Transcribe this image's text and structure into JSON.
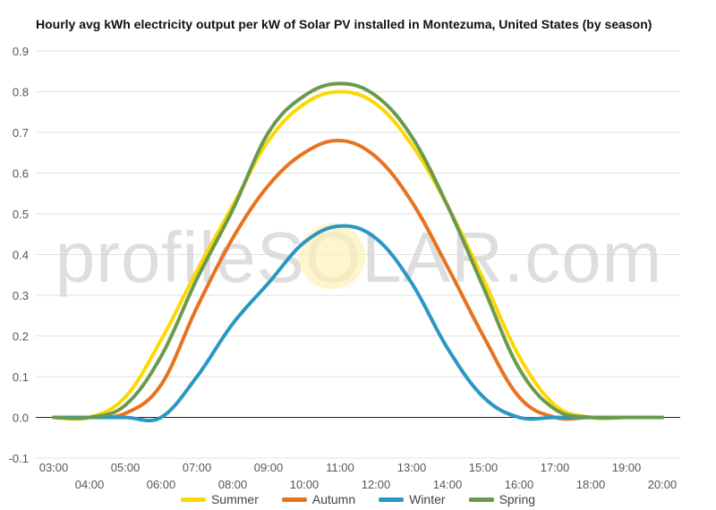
{
  "chart_data": {
    "type": "line",
    "title": "Hourly avg kWh electricity output per kW of Solar PV installed in Montezuma, United States (by season)",
    "watermark": "profileSOLAR.com",
    "xlabel": "",
    "ylabel": "",
    "x_ticks_top": [
      "03:00",
      "05:00",
      "07:00",
      "09:00",
      "11:00",
      "13:00",
      "15:00",
      "17:00",
      "19:00"
    ],
    "x_ticks_bottom": [
      "04:00",
      "06:00",
      "08:00",
      "10:00",
      "12:00",
      "14:00",
      "16:00",
      "18:00",
      "20:00"
    ],
    "x": [
      3,
      4,
      5,
      6,
      7,
      8,
      9,
      10,
      11,
      12,
      13,
      14,
      15,
      16,
      17,
      18,
      19,
      20
    ],
    "xlim": [
      2.5,
      20.5
    ],
    "ylim": [
      -0.1,
      0.9
    ],
    "y_ticks": [
      "-0.1",
      "0.0",
      "0.1",
      "0.2",
      "0.3",
      "0.4",
      "0.5",
      "0.6",
      "0.7",
      "0.8",
      "0.9"
    ],
    "grid": true,
    "legend_position": "bottom",
    "series": [
      {
        "name": "Summer",
        "color": "#FFD700",
        "values": [
          0.0,
          0.0,
          0.05,
          0.19,
          0.36,
          0.52,
          0.68,
          0.77,
          0.8,
          0.77,
          0.67,
          0.52,
          0.34,
          0.15,
          0.03,
          0.0,
          0.0,
          0.0
        ]
      },
      {
        "name": "Autumn",
        "color": "#E8731F",
        "values": [
          0.0,
          0.0,
          0.01,
          0.08,
          0.27,
          0.44,
          0.57,
          0.65,
          0.68,
          0.64,
          0.53,
          0.37,
          0.2,
          0.05,
          0.0,
          0.0,
          0.0,
          0.0
        ]
      },
      {
        "name": "Winter",
        "color": "#2A97C4",
        "values": [
          0.0,
          0.0,
          0.0,
          0.0,
          0.1,
          0.23,
          0.33,
          0.43,
          0.47,
          0.44,
          0.33,
          0.17,
          0.05,
          0.0,
          0.0,
          0.0,
          0.0,
          0.0
        ]
      },
      {
        "name": "Spring",
        "color": "#6A9A4D",
        "values": [
          0.0,
          0.0,
          0.03,
          0.15,
          0.34,
          0.51,
          0.7,
          0.79,
          0.82,
          0.79,
          0.69,
          0.52,
          0.32,
          0.12,
          0.02,
          0.0,
          0.0,
          0.0
        ]
      }
    ]
  }
}
